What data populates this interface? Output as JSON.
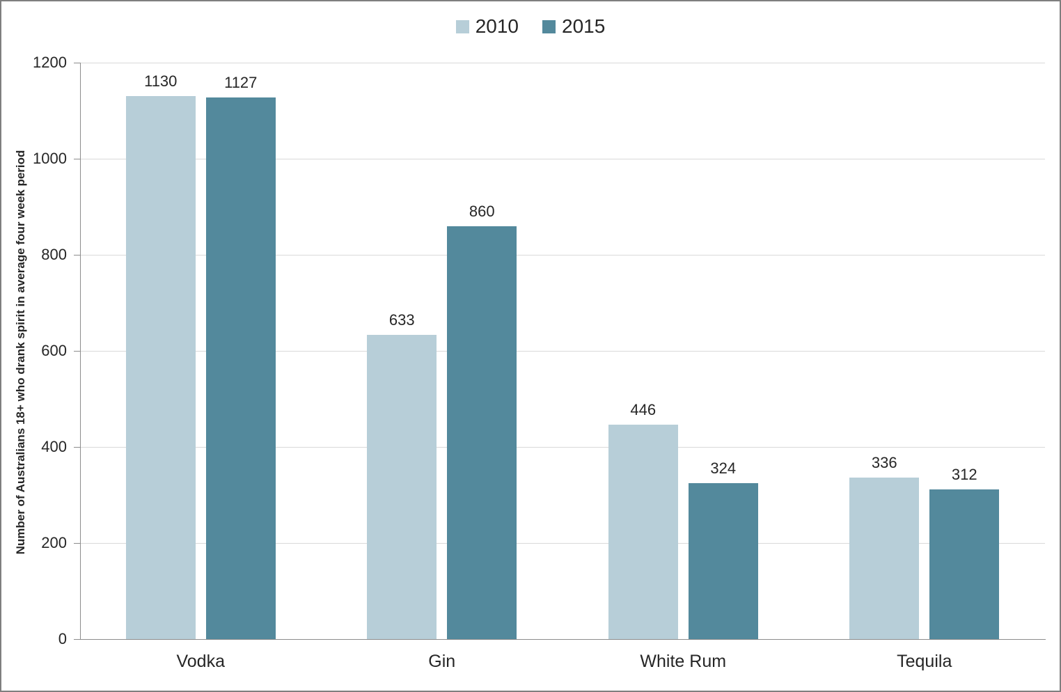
{
  "chart_data": {
    "type": "bar",
    "categories": [
      "Vodka",
      "Gin",
      "White Rum",
      "Tequila"
    ],
    "series": [
      {
        "name": "2010",
        "color": "#b7ced8",
        "values": [
          1130,
          633,
          446,
          336
        ]
      },
      {
        "name": "2015",
        "color": "#53899c",
        "values": [
          1127,
          860,
          324,
          312
        ]
      }
    ],
    "title": "",
    "xlabel": "",
    "ylabel": "Number of Australians 18+ who drank spirit in average four week period",
    "ylim": [
      0,
      1200
    ],
    "yticks": [
      0,
      200,
      400,
      600,
      800,
      1000,
      1200
    ],
    "grid": true,
    "legend_position": "top",
    "colors": {
      "grid": "#d9d9d9",
      "axis": "#8c8c8c",
      "text": "#262626",
      "frame_border": "#7f7f7f"
    }
  }
}
